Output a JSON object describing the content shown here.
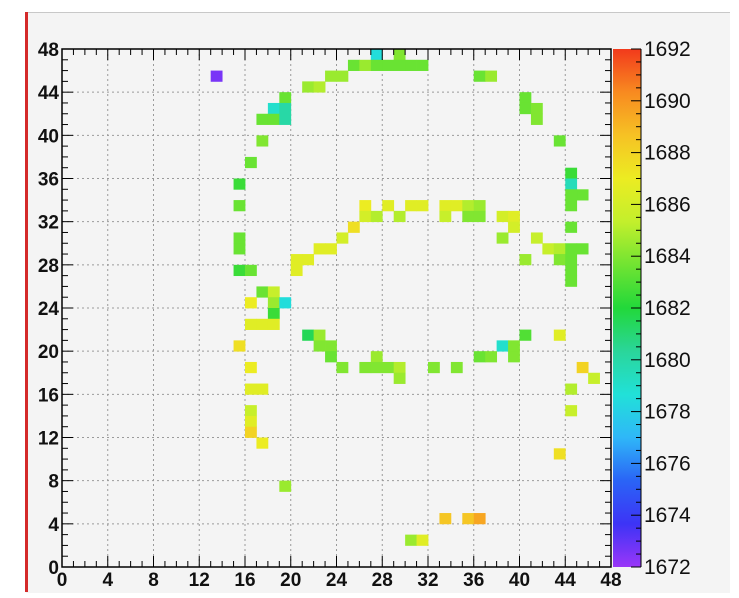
{
  "chart_data": {
    "type": "heatmap",
    "title": "",
    "xlabel": "",
    "ylabel": "",
    "xlim": [
      0,
      48
    ],
    "ylim": [
      0,
      48
    ],
    "zlim": [
      1672,
      1692
    ],
    "grid": true,
    "x_ticks": [
      "0",
      "4",
      "8",
      "12",
      "16",
      "20",
      "24",
      "28",
      "32",
      "36",
      "40",
      "44",
      "48"
    ],
    "y_ticks": [
      "0",
      "4",
      "8",
      "12",
      "16",
      "20",
      "24",
      "28",
      "32",
      "36",
      "40",
      "44",
      "48"
    ],
    "z_ticks": [
      "1672",
      "1674",
      "1676",
      "1678",
      "1680",
      "1682",
      "1684",
      "1686",
      "1688",
      "1690",
      "1692"
    ],
    "colorscale": [
      "#9a36f8",
      "#3d34f6",
      "#2a64f6",
      "#2fb7f8",
      "#21e1d8",
      "#2ad69a",
      "#22d83a",
      "#71e432",
      "#c3ef2c",
      "#ecec22",
      "#f6c224",
      "#f88a20",
      "#f23a1c"
    ],
    "cells": [
      {
        "x": 13,
        "y": 45,
        "z": 1672.6
      },
      {
        "x": 27,
        "y": 47,
        "z": 1678.5
      },
      {
        "x": 29,
        "y": 47,
        "z": 1684.0
      },
      {
        "x": 25,
        "y": 46,
        "z": 1683.5
      },
      {
        "x": 26,
        "y": 46,
        "z": 1684.5
      },
      {
        "x": 27,
        "y": 46,
        "z": 1683.5
      },
      {
        "x": 28,
        "y": 46,
        "z": 1683.5
      },
      {
        "x": 29,
        "y": 46,
        "z": 1683.5
      },
      {
        "x": 30,
        "y": 46,
        "z": 1683.5
      },
      {
        "x": 31,
        "y": 46,
        "z": 1683.5
      },
      {
        "x": 23,
        "y": 45,
        "z": 1684.5
      },
      {
        "x": 24,
        "y": 45,
        "z": 1684.5
      },
      {
        "x": 36,
        "y": 45,
        "z": 1683.5
      },
      {
        "x": 37,
        "y": 45,
        "z": 1684.5
      },
      {
        "x": 21,
        "y": 44,
        "z": 1684.5
      },
      {
        "x": 22,
        "y": 44,
        "z": 1685.0
      },
      {
        "x": 19,
        "y": 43,
        "z": 1683.5
      },
      {
        "x": 40,
        "y": 43,
        "z": 1683.5
      },
      {
        "x": 18,
        "y": 42,
        "z": 1679.0
      },
      {
        "x": 19,
        "y": 42,
        "z": 1680.0
      },
      {
        "x": 40,
        "y": 42,
        "z": 1683.5
      },
      {
        "x": 41,
        "y": 42,
        "z": 1684.0
      },
      {
        "x": 17,
        "y": 41,
        "z": 1683.5
      },
      {
        "x": 18,
        "y": 41,
        "z": 1683.5
      },
      {
        "x": 19,
        "y": 41,
        "z": 1680.0
      },
      {
        "x": 41,
        "y": 41,
        "z": 1684.0
      },
      {
        "x": 17,
        "y": 39,
        "z": 1684.0
      },
      {
        "x": 43,
        "y": 39,
        "z": 1683.5
      },
      {
        "x": 16,
        "y": 37,
        "z": 1683.5
      },
      {
        "x": 15,
        "y": 35,
        "z": 1682.5
      },
      {
        "x": 44,
        "y": 36,
        "z": 1682.5
      },
      {
        "x": 44,
        "y": 35,
        "z": 1679.5
      },
      {
        "x": 45,
        "y": 34,
        "z": 1683.5
      },
      {
        "x": 44,
        "y": 34,
        "z": 1683.5
      },
      {
        "x": 15,
        "y": 33,
        "z": 1683.5
      },
      {
        "x": 44,
        "y": 33,
        "z": 1683.5
      },
      {
        "x": 26,
        "y": 33,
        "z": 1687.0
      },
      {
        "x": 28,
        "y": 33,
        "z": 1686.5
      },
      {
        "x": 30,
        "y": 33,
        "z": 1686.5
      },
      {
        "x": 31,
        "y": 33,
        "z": 1686.5
      },
      {
        "x": 33,
        "y": 33,
        "z": 1686.5
      },
      {
        "x": 34,
        "y": 33,
        "z": 1686.5
      },
      {
        "x": 35,
        "y": 33,
        "z": 1685.0
      },
      {
        "x": 36,
        "y": 33,
        "z": 1684.5
      },
      {
        "x": 26,
        "y": 32,
        "z": 1686.0
      },
      {
        "x": 27,
        "y": 32,
        "z": 1685.0
      },
      {
        "x": 29,
        "y": 32,
        "z": 1685.0
      },
      {
        "x": 33,
        "y": 32,
        "z": 1685.5
      },
      {
        "x": 35,
        "y": 32,
        "z": 1684.0
      },
      {
        "x": 36,
        "y": 32,
        "z": 1684.0
      },
      {
        "x": 38,
        "y": 32,
        "z": 1686.0
      },
      {
        "x": 39,
        "y": 32,
        "z": 1686.5
      },
      {
        "x": 25,
        "y": 31,
        "z": 1687.5
      },
      {
        "x": 39,
        "y": 31,
        "z": 1686.0
      },
      {
        "x": 44,
        "y": 31,
        "z": 1683.5
      },
      {
        "x": 15,
        "y": 30,
        "z": 1683.5
      },
      {
        "x": 24,
        "y": 30,
        "z": 1686.0
      },
      {
        "x": 38,
        "y": 30,
        "z": 1684.5
      },
      {
        "x": 41,
        "y": 30,
        "z": 1685.5
      },
      {
        "x": 15,
        "y": 29,
        "z": 1683.5
      },
      {
        "x": 22,
        "y": 29,
        "z": 1686.5
      },
      {
        "x": 23,
        "y": 29,
        "z": 1686.5
      },
      {
        "x": 42,
        "y": 29,
        "z": 1685.5
      },
      {
        "x": 43,
        "y": 29,
        "z": 1685.0
      },
      {
        "x": 44,
        "y": 29,
        "z": 1683.5
      },
      {
        "x": 45,
        "y": 29,
        "z": 1683.5
      },
      {
        "x": 20,
        "y": 28,
        "z": 1686.5
      },
      {
        "x": 21,
        "y": 28,
        "z": 1686.5
      },
      {
        "x": 40,
        "y": 28,
        "z": 1684.5
      },
      {
        "x": 43,
        "y": 28,
        "z": 1684.0
      },
      {
        "x": 44,
        "y": 28,
        "z": 1683.5
      },
      {
        "x": 15,
        "y": 27,
        "z": 1682.5
      },
      {
        "x": 16,
        "y": 27,
        "z": 1683.5
      },
      {
        "x": 20,
        "y": 27,
        "z": 1686.5
      },
      {
        "x": 44,
        "y": 27,
        "z": 1683.5
      },
      {
        "x": 17,
        "y": 25,
        "z": 1683.5
      },
      {
        "x": 18,
        "y": 25,
        "z": 1685.5
      },
      {
        "x": 44,
        "y": 26,
        "z": 1683.5
      },
      {
        "x": 16,
        "y": 24,
        "z": 1687.0
      },
      {
        "x": 18,
        "y": 24,
        "z": 1684.5
      },
      {
        "x": 19,
        "y": 24,
        "z": 1678.5
      },
      {
        "x": 18,
        "y": 23,
        "z": 1682.5
      },
      {
        "x": 16,
        "y": 22,
        "z": 1686.5
      },
      {
        "x": 17,
        "y": 22,
        "z": 1686.5
      },
      {
        "x": 18,
        "y": 22,
        "z": 1686.5
      },
      {
        "x": 21,
        "y": 21,
        "z": 1681.5
      },
      {
        "x": 22,
        "y": 21,
        "z": 1684.5
      },
      {
        "x": 40,
        "y": 21,
        "z": 1683.0
      },
      {
        "x": 43,
        "y": 21,
        "z": 1686.5
      },
      {
        "x": 15,
        "y": 20,
        "z": 1687.5
      },
      {
        "x": 22,
        "y": 20,
        "z": 1684.0
      },
      {
        "x": 23,
        "y": 20,
        "z": 1684.0
      },
      {
        "x": 38,
        "y": 20,
        "z": 1679.0
      },
      {
        "x": 39,
        "y": 20,
        "z": 1684.0
      },
      {
        "x": 23,
        "y": 19,
        "z": 1683.5
      },
      {
        "x": 27,
        "y": 19,
        "z": 1684.5
      },
      {
        "x": 36,
        "y": 19,
        "z": 1683.5
      },
      {
        "x": 37,
        "y": 19,
        "z": 1684.0
      },
      {
        "x": 39,
        "y": 19,
        "z": 1684.0
      },
      {
        "x": 16,
        "y": 18,
        "z": 1687.0
      },
      {
        "x": 24,
        "y": 18,
        "z": 1684.0
      },
      {
        "x": 26,
        "y": 18,
        "z": 1684.0
      },
      {
        "x": 27,
        "y": 18,
        "z": 1684.0
      },
      {
        "x": 28,
        "y": 18,
        "z": 1684.0
      },
      {
        "x": 29,
        "y": 18,
        "z": 1685.0
      },
      {
        "x": 32,
        "y": 18,
        "z": 1684.0
      },
      {
        "x": 34,
        "y": 18,
        "z": 1684.0
      },
      {
        "x": 45,
        "y": 18,
        "z": 1688.0
      },
      {
        "x": 29,
        "y": 17,
        "z": 1684.5
      },
      {
        "x": 46,
        "y": 17,
        "z": 1685.5
      },
      {
        "x": 16,
        "y": 16,
        "z": 1686.5
      },
      {
        "x": 17,
        "y": 16,
        "z": 1686.5
      },
      {
        "x": 44,
        "y": 16,
        "z": 1685.0
      },
      {
        "x": 16,
        "y": 14,
        "z": 1685.5
      },
      {
        "x": 44,
        "y": 14,
        "z": 1685.5
      },
      {
        "x": 16,
        "y": 13,
        "z": 1686.5
      },
      {
        "x": 16,
        "y": 12,
        "z": 1688.0
      },
      {
        "x": 17,
        "y": 11,
        "z": 1687.0
      },
      {
        "x": 43,
        "y": 10,
        "z": 1687.5
      },
      {
        "x": 19,
        "y": 7,
        "z": 1684.5
      },
      {
        "x": 33,
        "y": 4,
        "z": 1688.5
      },
      {
        "x": 35,
        "y": 4,
        "z": 1688.5
      },
      {
        "x": 36,
        "y": 4,
        "z": 1689.5
      },
      {
        "x": 30,
        "y": 2,
        "z": 1684.5
      },
      {
        "x": 31,
        "y": 2,
        "z": 1686.5
      }
    ]
  }
}
